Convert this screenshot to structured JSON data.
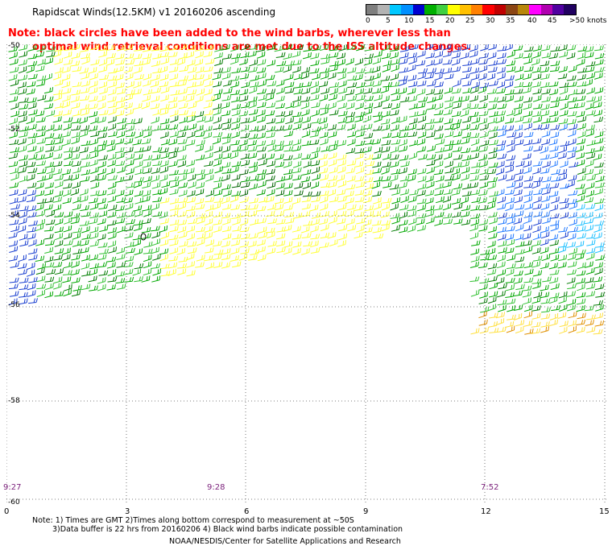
{
  "title": "Rapidscat Winds(12.5KM) v1 20160206 ascending",
  "note_red": [
    "Note: black circles have been added to the wind barbs, wherever less than",
    "optimal wind retrieval conditions are met due to the ISS altitude changes."
  ],
  "colorbar": {
    "colors": [
      "#7f7f7f",
      "#b3b3b3",
      "#00c8ff",
      "#0090ff",
      "#0000d0",
      "#00b000",
      "#40d040",
      "#ffff00",
      "#ffc000",
      "#ff8000",
      "#ff0000",
      "#c00000",
      "#8b4513",
      "#b8860b",
      "#ff00ff",
      "#b000b0",
      "#5000a0",
      "#200060"
    ],
    "labels": [
      "0",
      "5",
      "10",
      "15",
      "20",
      "25",
      "30",
      "35",
      "40",
      "45",
      ">50 knots"
    ]
  },
  "axes": {
    "lat_labels": [
      "-50",
      "-52",
      "-54",
      "-56",
      "-58",
      "-60"
    ],
    "lon_labels": [
      "0",
      "3",
      "6",
      "9",
      "12",
      "15"
    ]
  },
  "times": [
    "9:27",
    "9:28",
    "7:52"
  ],
  "footer": {
    "line1": "Note: 1) Times are GMT 2)Times along bottom correspond to measurement at ~50S",
    "line2": "3)Data buffer is 22 hrs from 20160206 4) Black wind barbs indicate possible contamination",
    "line3": "NOAA/NESDIS/Center for Satellite Applications and Research"
  },
  "map_data": {
    "lat_range": [
      -60,
      -50
    ],
    "lon_range": [
      0,
      15
    ],
    "wind_speed_units": "knots"
  }
}
